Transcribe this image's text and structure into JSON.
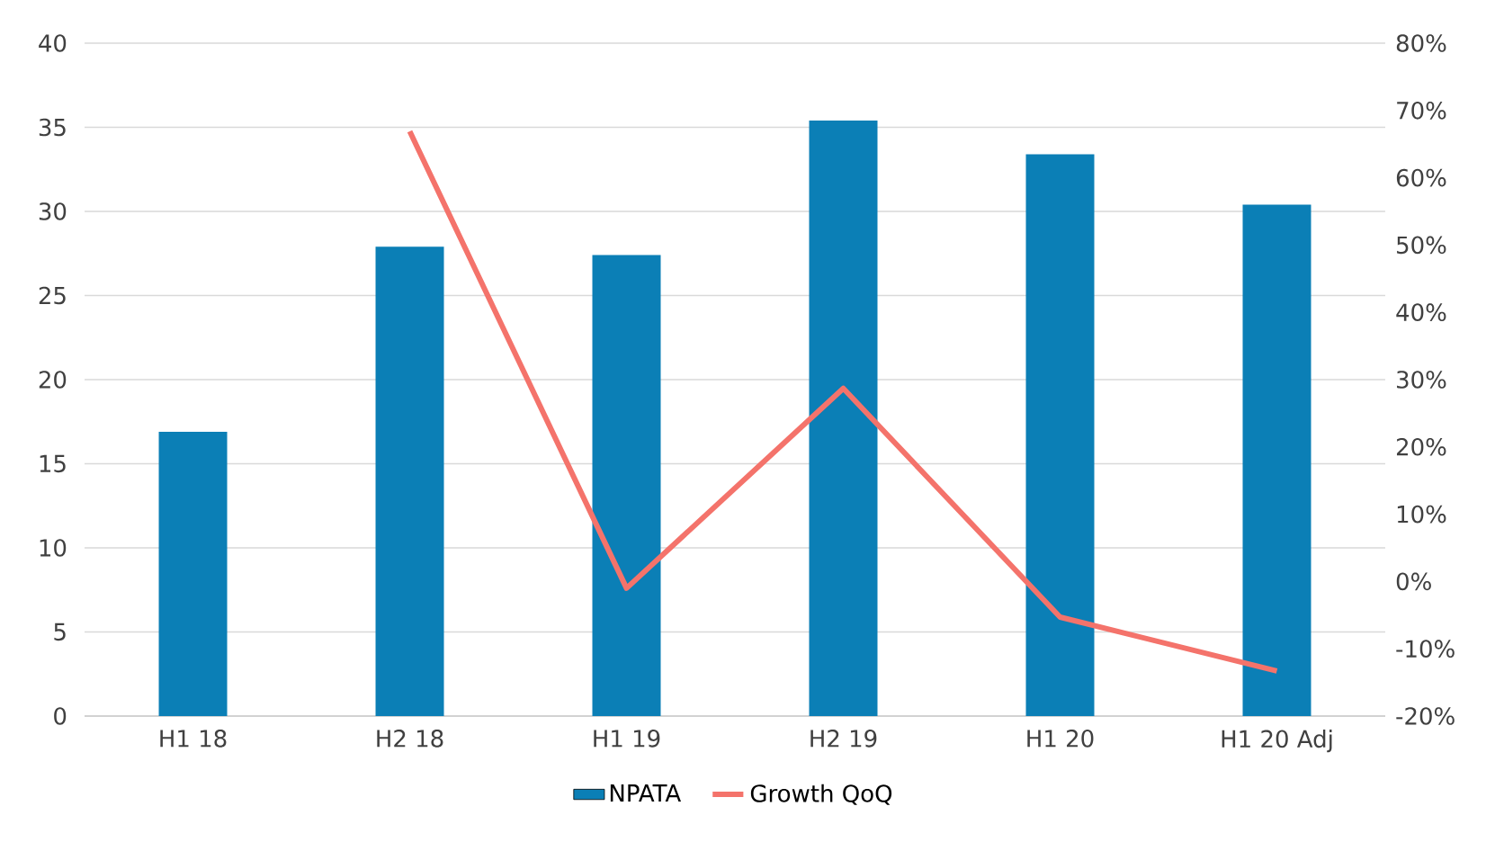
{
  "chart_data": {
    "type": "bar",
    "categories": [
      "H1 18",
      "H2 18",
      "H1 19",
      "H2 19",
      "H1 20",
      "H1 20 Adj"
    ],
    "series": [
      {
        "name": "NPATA",
        "color": "#0b7fb6",
        "values": [
          16.9,
          27.9,
          27.4,
          35.4,
          33.4,
          30.4
        ]
      },
      {
        "name": "Growth QoQ",
        "type": "line",
        "axis": "y2",
        "color": "#f4736b",
        "values": [
          null,
          66.9,
          -1,
          28.7,
          -5.3,
          -13.3
        ]
      }
    ],
    "ylim": [
      0,
      40
    ],
    "yticks": [
      0,
      5,
      10,
      15,
      20,
      25,
      30,
      35,
      40
    ],
    "y2lim": [
      -20,
      80
    ],
    "y2ticks": [
      {
        "value": -20,
        "label": "-20%"
      },
      {
        "value": -10,
        "label": "-10%"
      },
      {
        "value": 0,
        "label": "0%"
      },
      {
        "value": 10,
        "label": "10%"
      },
      {
        "value": 20,
        "label": "20%"
      },
      {
        "value": 30,
        "label": "30%"
      },
      {
        "value": 40,
        "label": "40%"
      },
      {
        "value": 50,
        "label": "50%"
      },
      {
        "value": 60,
        "label": "60%"
      },
      {
        "value": 70,
        "label": "70%"
      },
      {
        "value": 80,
        "label": "80%"
      }
    ],
    "grid": "y",
    "legend": "bottom",
    "marker": "none"
  }
}
